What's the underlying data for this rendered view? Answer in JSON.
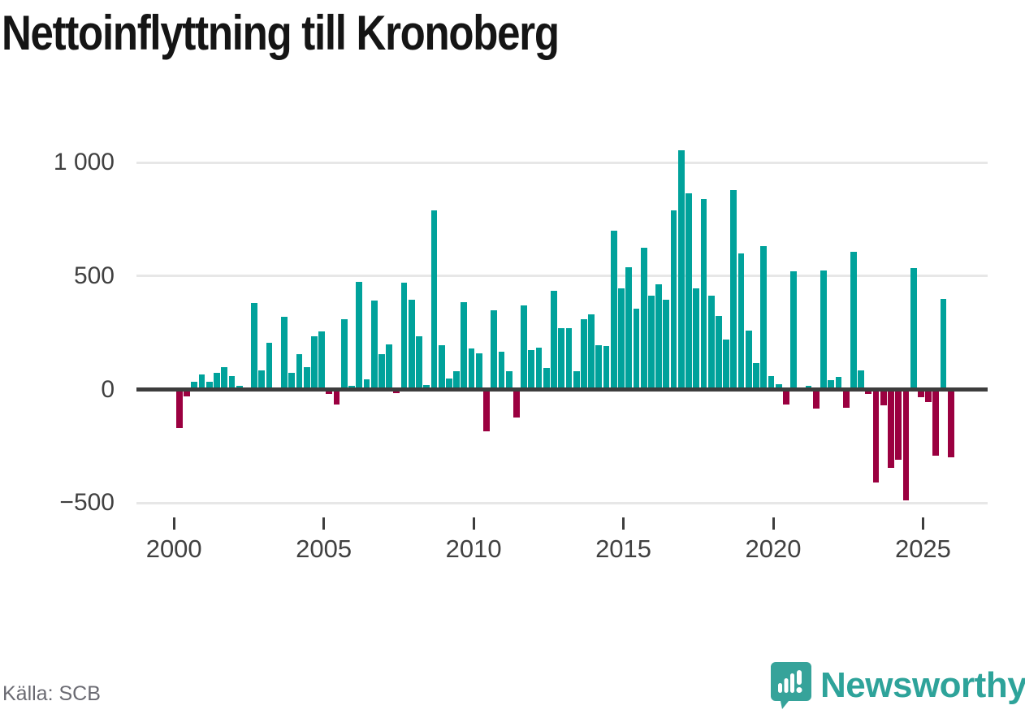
{
  "title": "Nettoinflyttning till Kronoberg",
  "source": "Källa: SCB",
  "logo": {
    "text": "Newsworthy",
    "icon": "newsworthy-speech-bubble-bar-chart-icon"
  },
  "colors": {
    "positive": "#00a29b",
    "negative": "#9b0040",
    "axis": "#3d3d3d",
    "gridline": "#e7e7e7",
    "title_text": "#151515",
    "tick_text": "#404040",
    "source_text": "#6a6a72",
    "logo_teal": "#2ea39a",
    "background": "#ffffff"
  },
  "y_axis": {
    "tick_labels": [
      "1 000",
      "500",
      "0",
      "−500"
    ],
    "tick_values": [
      1000,
      500,
      0,
      -500
    ]
  },
  "x_axis": {
    "tick_labels": [
      "2000",
      "2005",
      "2010",
      "2015",
      "2020",
      "2025"
    ],
    "tick_values": [
      2000,
      2005,
      2010,
      2015,
      2020,
      2025
    ]
  },
  "chart_data": {
    "type": "bar",
    "title": "Nettoinflyttning till Kronoberg",
    "x_unit": "quarter",
    "grid": "horizontal",
    "legend": "none",
    "ylim": [
      -550,
      1100
    ],
    "xlabel": "",
    "ylabel": "",
    "positive_color": "#00a29b",
    "negative_color": "#9b0040",
    "categories": [
      "2000Q1",
      "2000Q2",
      "2000Q3",
      "2000Q4",
      "2001Q1",
      "2001Q2",
      "2001Q3",
      "2001Q4",
      "2002Q1",
      "2002Q2",
      "2002Q3",
      "2002Q4",
      "2003Q1",
      "2003Q2",
      "2003Q3",
      "2003Q4",
      "2004Q1",
      "2004Q2",
      "2004Q3",
      "2004Q4",
      "2005Q1",
      "2005Q2",
      "2005Q3",
      "2005Q4",
      "2006Q1",
      "2006Q2",
      "2006Q3",
      "2006Q4",
      "2007Q1",
      "2007Q2",
      "2007Q3",
      "2007Q4",
      "2008Q1",
      "2008Q2",
      "2008Q3",
      "2008Q4",
      "2009Q1",
      "2009Q2",
      "2009Q3",
      "2009Q4",
      "2010Q1",
      "2010Q2",
      "2010Q3",
      "2010Q4",
      "2011Q1",
      "2011Q2",
      "2011Q3",
      "2011Q4",
      "2012Q1",
      "2012Q2",
      "2012Q3",
      "2012Q4",
      "2013Q1",
      "2013Q2",
      "2013Q3",
      "2013Q4",
      "2014Q1",
      "2014Q2",
      "2014Q3",
      "2014Q4",
      "2015Q1",
      "2015Q2",
      "2015Q3",
      "2015Q4",
      "2016Q1",
      "2016Q2",
      "2016Q3",
      "2016Q4",
      "2017Q1",
      "2017Q2",
      "2017Q3",
      "2017Q4",
      "2018Q1",
      "2018Q2",
      "2018Q3",
      "2018Q4",
      "2019Q1",
      "2019Q2",
      "2019Q3",
      "2019Q4",
      "2020Q1",
      "2020Q2",
      "2020Q3",
      "2020Q4",
      "2021Q1",
      "2021Q2",
      "2021Q3",
      "2021Q4",
      "2022Q1",
      "2022Q2",
      "2022Q3",
      "2022Q4",
      "2023Q1",
      "2023Q2",
      "2023Q3",
      "2023Q4",
      "2024Q1",
      "2024Q2",
      "2024Q3",
      "2024Q4",
      "2025Q1",
      "2025Q2",
      "2025Q3",
      "2025Q4"
    ],
    "values": [
      -170,
      -30,
      35,
      65,
      35,
      75,
      100,
      60,
      15,
      0,
      380,
      85,
      205,
      0,
      320,
      75,
      155,
      100,
      235,
      255,
      -20,
      -65,
      310,
      15,
      475,
      45,
      390,
      155,
      200,
      -15,
      470,
      395,
      235,
      20,
      790,
      195,
      50,
      80,
      385,
      180,
      160,
      -185,
      350,
      165,
      80,
      -125,
      370,
      175,
      185,
      95,
      435,
      270,
      270,
      80,
      310,
      330,
      195,
      190,
      700,
      445,
      540,
      355,
      625,
      415,
      465,
      395,
      790,
      1055,
      865,
      445,
      840,
      415,
      325,
      220,
      880,
      600,
      260,
      115,
      630,
      60,
      25,
      -65,
      520,
      0,
      15,
      -85,
      525,
      40,
      55,
      -80,
      605,
      85,
      -20,
      -410,
      -70,
      -345,
      -310,
      -490,
      535,
      -35,
      -55,
      -290,
      400,
      -300
    ]
  }
}
